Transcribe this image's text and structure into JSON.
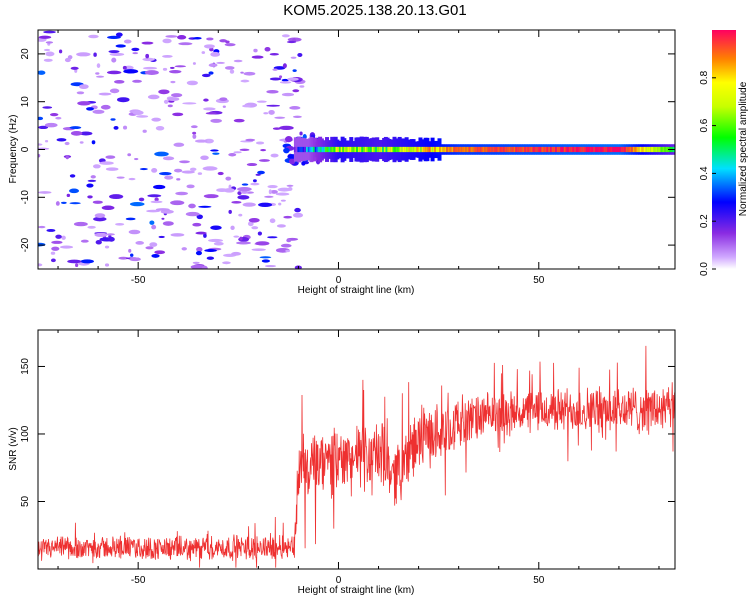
{
  "figure": {
    "title": "KOM5.2025.138.20.13.G01"
  },
  "chart_data": [
    {
      "type": "heatmap",
      "xlabel": "Height of straight line (km)",
      "ylabel": "Frequency (Hz)",
      "xlim": [
        -75,
        84
      ],
      "ylim": [
        -25,
        25
      ],
      "xticks": [
        -50,
        0,
        50
      ],
      "yticks": [
        -20,
        -10,
        0,
        10,
        20
      ],
      "grid": false,
      "colorbar": {
        "label": "Normalized spectral amplitude",
        "range": [
          0,
          1
        ],
        "ticks": [
          0.0,
          0.2,
          0.4,
          0.6,
          0.8
        ],
        "colormap": "rainbow (purple to red)"
      },
      "description_data": {
        "noise_region_x": [
          -75,
          -17
        ],
        "noise_amplitude": [
          0.05,
          0.35
        ],
        "onset_x": -11,
        "line_frequency_hz": 0,
        "line_amplitude_profile": [
          {
            "x": -11,
            "amp": 0.2
          },
          {
            "x": -5,
            "amp": 0.45
          },
          {
            "x": 0,
            "amp": 0.7
          },
          {
            "x": 10,
            "amp": 0.6
          },
          {
            "x": 20,
            "amp": 0.75
          },
          {
            "x": 30,
            "amp": 0.9
          },
          {
            "x": 70,
            "amp": 1.0
          },
          {
            "x": 84,
            "amp": 0.5
          }
        ]
      }
    },
    {
      "type": "line",
      "xlabel": "Height of straight line (km)",
      "ylabel": "SNR (v/v)",
      "xlim": [
        -75,
        84
      ],
      "ylim": [
        0,
        177
      ],
      "xticks": [
        -50,
        0,
        50
      ],
      "yticks": [
        50,
        100,
        150
      ],
      "grid": false,
      "series": [
        {
          "color": "#ee3030",
          "points": [
            {
              "x": -75,
              "y": 15
            },
            {
              "x": -60,
              "y": 16
            },
            {
              "x": -40,
              "y": 15
            },
            {
              "x": -20,
              "y": 16
            },
            {
              "x": -11,
              "y": 17
            },
            {
              "x": -10,
              "y": 72
            },
            {
              "x": 0,
              "y": 80
            },
            {
              "x": 10,
              "y": 85
            },
            {
              "x": 14,
              "y": 70
            },
            {
              "x": 20,
              "y": 95
            },
            {
              "x": 30,
              "y": 108
            },
            {
              "x": 40,
              "y": 115
            },
            {
              "x": 50,
              "y": 117
            },
            {
              "x": 60,
              "y": 118
            },
            {
              "x": 70,
              "y": 118
            },
            {
              "x": 84,
              "y": 118
            }
          ],
          "noise_band": [
            {
              "x": -75,
              "amp": 8
            },
            {
              "x": -11,
              "amp": 9
            },
            {
              "x": -10,
              "amp": 25
            },
            {
              "x": 20,
              "amp": 22
            },
            {
              "x": 40,
              "amp": 15
            },
            {
              "x": 84,
              "amp": 18
            }
          ]
        }
      ]
    }
  ]
}
